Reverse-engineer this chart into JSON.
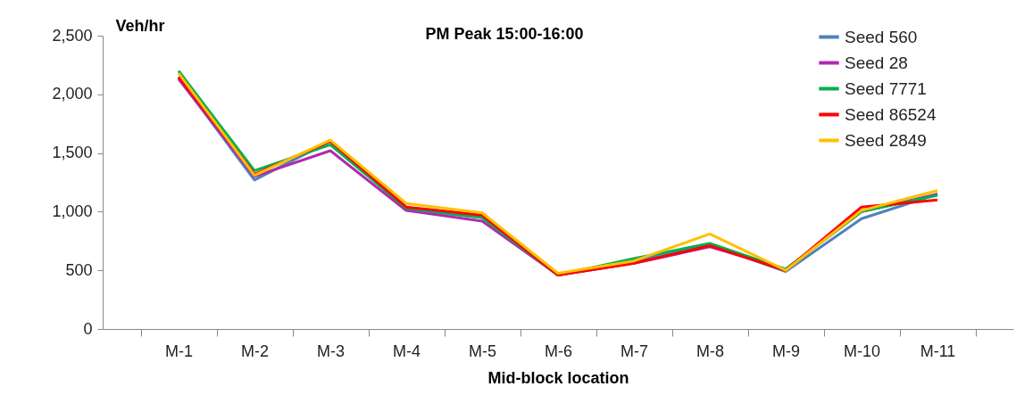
{
  "chart_data": {
    "type": "line",
    "title": "PM Peak 15:00-16:00",
    "xlabel": "Mid-block location",
    "ylabel": "Veh/hr",
    "categories": [
      "M-1",
      "M-2",
      "M-3",
      "M-4",
      "M-5",
      "M-6",
      "M-7",
      "M-8",
      "M-9",
      "M-10",
      "M-11"
    ],
    "ylim": [
      0,
      2500
    ],
    "yticks": [
      {
        "value": 0,
        "label": "0"
      },
      {
        "value": 500,
        "label": "500"
      },
      {
        "value": 1000,
        "label": "1,000"
      },
      {
        "value": 1500,
        "label": "1,500"
      },
      {
        "value": 2000,
        "label": "2,000"
      },
      {
        "value": 2500,
        "label": "2,500"
      }
    ],
    "grid": false,
    "legend": "top right",
    "marker": "none",
    "line_style": "solid",
    "series": [
      {
        "name": "Seed 560",
        "color": "#4f81bd",
        "values": [
          2140,
          1270,
          1600,
          1020,
          950,
          460,
          580,
          720,
          490,
          940,
          1150
        ]
      },
      {
        "name": "Seed 28",
        "color": "#b02ab0",
        "values": [
          2130,
          1300,
          1520,
          1010,
          920,
          460,
          560,
          700,
          510,
          1000,
          1150
        ]
      },
      {
        "name": "Seed 7771",
        "color": "#00b050",
        "values": [
          2200,
          1350,
          1570,
          1030,
          950,
          460,
          600,
          730,
          510,
          1000,
          1140
        ]
      },
      {
        "name": "Seed 86524",
        "color": "#ff0000",
        "values": [
          2150,
          1320,
          1600,
          1040,
          970,
          460,
          560,
          710,
          500,
          1040,
          1100
        ]
      },
      {
        "name": "Seed 2849",
        "color": "#ffc000",
        "values": [
          2180,
          1310,
          1610,
          1070,
          990,
          475,
          580,
          810,
          500,
          1010,
          1180
        ]
      }
    ]
  }
}
